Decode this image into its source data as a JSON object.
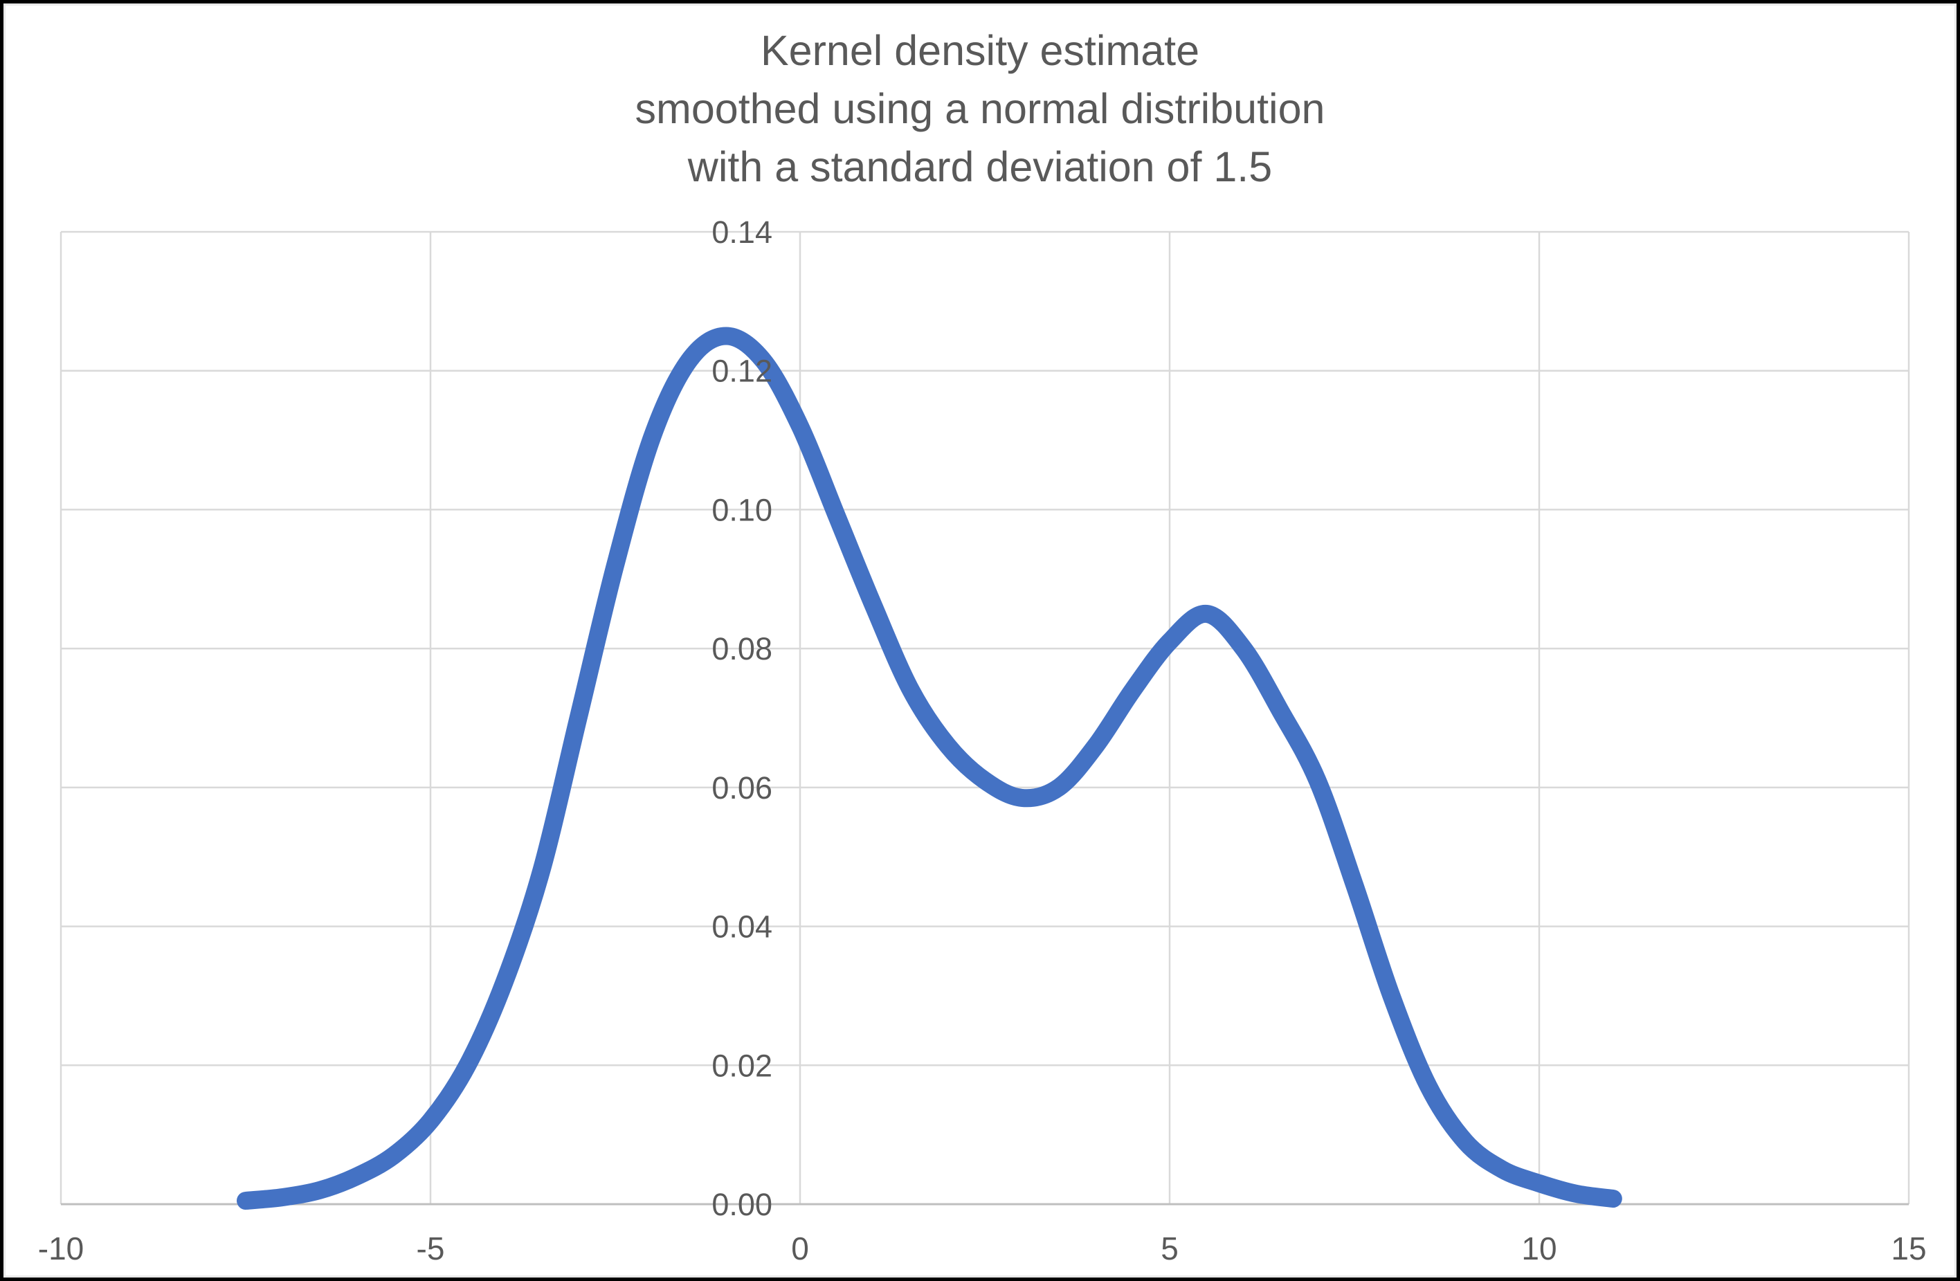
{
  "title": {
    "line1": "Kernel density estimate",
    "line2": "smoothed using a normal distribution",
    "line3": "with a standard deviation of 1.5"
  },
  "chart_data": {
    "type": "line",
    "title": "Kernel density estimate smoothed using a normal distribution with a standard deviation of 1.5",
    "xlabel": "",
    "ylabel": "",
    "xlim": [
      -10,
      15
    ],
    "ylim": [
      0.0,
      0.14
    ],
    "x_ticks": [
      "-10",
      "-5",
      "0",
      "5",
      "10",
      "15"
    ],
    "y_ticks": [
      "0.00",
      "0.02",
      "0.04",
      "0.06",
      "0.08",
      "0.10",
      "0.12",
      "0.14"
    ],
    "grid": true,
    "legend": false,
    "kernel": "normal",
    "kernel_sd": 1.5,
    "series": [
      {
        "name": "Kernel density estimate",
        "color": "#4472C4",
        "points": [
          [
            -7.5,
            0.0005
          ],
          [
            -7.0,
            0.001
          ],
          [
            -6.5,
            0.002
          ],
          [
            -6.0,
            0.004
          ],
          [
            -5.5,
            0.007
          ],
          [
            -5.0,
            0.012
          ],
          [
            -4.5,
            0.02
          ],
          [
            -4.0,
            0.032
          ],
          [
            -3.5,
            0.048
          ],
          [
            -3.0,
            0.07
          ],
          [
            -2.5,
            0.092
          ],
          [
            -2.0,
            0.1105
          ],
          [
            -1.5,
            0.1215
          ],
          [
            -1.0,
            0.125
          ],
          [
            -0.5,
            0.1215
          ],
          [
            0.0,
            0.112
          ],
          [
            0.5,
            0.099
          ],
          [
            1.0,
            0.086
          ],
          [
            1.5,
            0.074
          ],
          [
            2.0,
            0.066
          ],
          [
            2.5,
            0.061
          ],
          [
            3.0,
            0.0585
          ],
          [
            3.5,
            0.06
          ],
          [
            4.0,
            0.066
          ],
          [
            4.5,
            0.074
          ],
          [
            5.0,
            0.081
          ],
          [
            5.5,
            0.085
          ],
          [
            6.0,
            0.08
          ],
          [
            6.5,
            0.071
          ],
          [
            7.0,
            0.061
          ],
          [
            7.5,
            0.046
          ],
          [
            8.0,
            0.03
          ],
          [
            8.5,
            0.017
          ],
          [
            9.0,
            0.009
          ],
          [
            9.5,
            0.005
          ],
          [
            10.0,
            0.003
          ],
          [
            10.5,
            0.0015
          ],
          [
            11.0,
            0.0008
          ]
        ]
      }
    ],
    "colors": {
      "line": "#4472C4",
      "gridline": "#D9D9D9",
      "axis_line": "#BFBFBF",
      "tick_text": "#595959",
      "title_text": "#595959",
      "background": "#FFFFFF",
      "frame_border": "#010101"
    }
  }
}
